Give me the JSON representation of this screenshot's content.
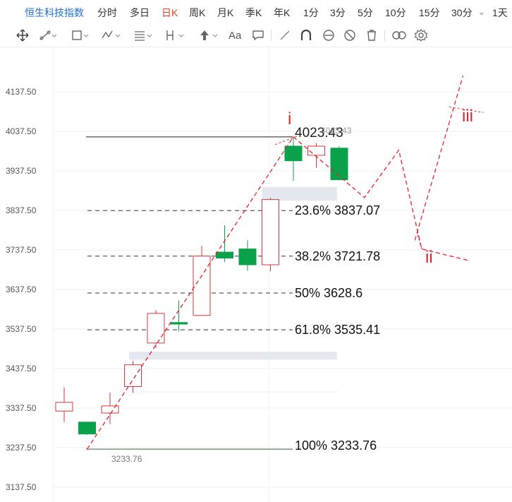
{
  "tabs": {
    "index_name": "恒生科技指数",
    "items": [
      "分时",
      "多日",
      "日K",
      "周K",
      "月K",
      "季K",
      "年K",
      "1分",
      "3分",
      "5分",
      "10分",
      "15分",
      "30分",
      "1天"
    ],
    "active": "日K",
    "more_arrow": "⌄"
  },
  "toolbar": {
    "icons": [
      "move-icon",
      "line-tool-icon",
      "rectangle-tool-icon",
      "wave-tool-icon",
      "fibonacci-tool-icon",
      "measure-tool-icon",
      "arrow-up-icon",
      "text-tool-icon",
      "comment-icon",
      "pen-icon",
      "magnet-icon",
      "sync-icon",
      "hide-icon",
      "delete-icon",
      "link-icon",
      "settings-icon"
    ],
    "text_tool_label": "Aa"
  },
  "colors": {
    "up": "#d63a3a",
    "down": "#0aa14b",
    "wave": "#e8222b",
    "fib_line": "#333333"
  },
  "chart_data": {
    "type": "candlestick",
    "y_ticks": [
      "4137.50",
      "4037.50",
      "3937.50",
      "3837.50",
      "3737.50",
      "3637.50",
      "3537.50",
      "3437.50",
      "3337.50",
      "3237.50",
      "3137.50"
    ],
    "ylim": [
      3102,
      4218
    ],
    "candles": [
      {
        "o": 3330,
        "h": 3390,
        "l": 3302,
        "c": 3352,
        "dir": "up"
      },
      {
        "o": 3302,
        "h": 3302,
        "l": 3270,
        "c": 3272,
        "dir": "down"
      },
      {
        "o": 3325,
        "h": 3377,
        "l": 3297,
        "c": 3343,
        "dir": "up"
      },
      {
        "o": 3392,
        "h": 3457,
        "l": 3376,
        "c": 3447,
        "dir": "up"
      },
      {
        "o": 3502,
        "h": 3585,
        "l": 3490,
        "c": 3577,
        "dir": "up"
      },
      {
        "o": 3554,
        "h": 3610,
        "l": 3532,
        "c": 3550,
        "dir": "down"
      },
      {
        "o": 3572,
        "h": 3748,
        "l": 3572,
        "c": 3722,
        "dir": "up"
      },
      {
        "o": 3732,
        "h": 3800,
        "l": 3707,
        "c": 3717,
        "dir": "down"
      },
      {
        "o": 3740,
        "h": 3762,
        "l": 3685,
        "c": 3700,
        "dir": "down"
      },
      {
        "o": 3700,
        "h": 3870,
        "l": 3683,
        "c": 3865,
        "dir": "up"
      },
      {
        "o": 4000,
        "h": 4023,
        "l": 3912,
        "c": 3963,
        "dir": "down"
      },
      {
        "o": 3977,
        "h": 4008,
        "l": 3945,
        "c": 4000,
        "dir": "up"
      },
      {
        "o": 3995,
        "h": 4000,
        "l": 3918,
        "c": 3915,
        "dir": "down"
      }
    ],
    "fib_levels": [
      {
        "label": "23.6% 3837.07",
        "value": 3837.07
      },
      {
        "label": "38.2% 3721.78",
        "value": 3721.78
      },
      {
        "label": "50% 3628.6",
        "value": 3628.6
      },
      {
        "label": "61.8% 3535.41",
        "value": 3535.41
      }
    ],
    "high_label": "4023.43",
    "high_label_small": "4023.43",
    "high_value": 4023.43,
    "low_label": "100% 3233.76",
    "low_value": 3233.76,
    "low_small_label": "3233.76",
    "wave_labels": [
      "i",
      "ii",
      "iii"
    ],
    "wave_path": [
      {
        "i": 1,
        "v": 3233.76
      },
      {
        "i": 10,
        "v": 4023.43
      },
      {
        "i": 13.1,
        "v": 3870
      },
      {
        "i": 14.6,
        "v": 3990
      },
      {
        "i": 15.6,
        "v": 3740
      },
      {
        "i": 17.7,
        "v": 3710
      }
    ],
    "wave_iii_path": [
      {
        "i": 15.3,
        "v": 3762
      },
      {
        "i": 17.4,
        "v": 4178
      }
    ],
    "wave_i_seg": [
      {
        "i": 9.2,
        "v": 4004
      },
      {
        "i": 10.2,
        "v": 4026
      }
    ],
    "wave_iii_seg": [
      {
        "i": 16.8,
        "v": 4099
      },
      {
        "i": 18.3,
        "v": 4085
      }
    ],
    "zones": [
      {
        "from_i": 9,
        "to_i": 11.9,
        "v_top": 3897,
        "v_bottom": 3862
      },
      {
        "from_i": 3.2,
        "to_i": 11.9,
        "v_top": 3480,
        "v_bottom": 3460
      }
    ]
  }
}
